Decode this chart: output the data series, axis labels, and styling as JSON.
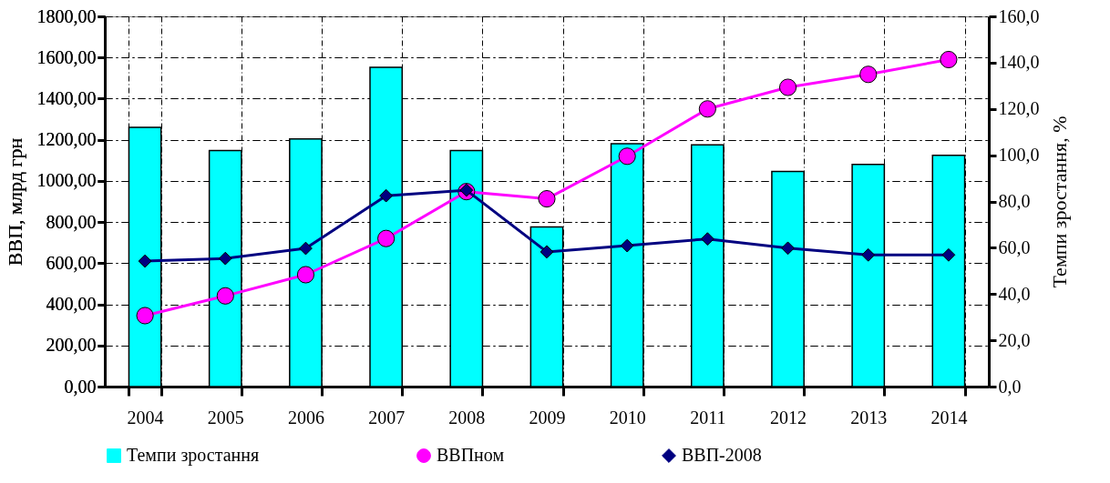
{
  "chart_data": {
    "type": "line",
    "categories": [
      "2004",
      "2005",
      "2006",
      "2007",
      "2008",
      "2009",
      "2010",
      "2011",
      "2012",
      "2013",
      "2014"
    ],
    "ylabel": "ВВП,  млрд грн",
    "y2label": "Темпи зростання,  %",
    "ylim": [
      0,
      1800
    ],
    "yticks": [
      {
        "value": 0,
        "label": "0,00"
      },
      {
        "value": 200,
        "label": "200,00"
      },
      {
        "value": 400,
        "label": "400,00"
      },
      {
        "value": 600,
        "label": "600,00"
      },
      {
        "value": 800,
        "label": "800,00"
      },
      {
        "value": 1000,
        "label": "1000,00"
      },
      {
        "value": 1200,
        "label": "1200,00"
      },
      {
        "value": 1400,
        "label": "1400,00"
      },
      {
        "value": 1600,
        "label": "1600,00"
      },
      {
        "value": 1800,
        "label": "1800,00"
      }
    ],
    "y2lim": [
      0,
      160
    ],
    "y2ticks": [
      {
        "value": 0,
        "label": "0,0"
      },
      {
        "value": 20,
        "label": "20,0"
      },
      {
        "value": 40,
        "label": "40,0"
      },
      {
        "value": 60,
        "label": "60,0"
      },
      {
        "value": 80,
        "label": "80,0"
      },
      {
        "value": 100,
        "label": "100,0"
      },
      {
        "value": 120,
        "label": "120,0"
      },
      {
        "value": 140,
        "label": "140,0"
      },
      {
        "value": 160,
        "label": "160,0"
      }
    ],
    "series": [
      {
        "name": "Темпи зростання",
        "type": "bar",
        "axis": "y2",
        "color": "#00ffff",
        "values": [
          112,
          102,
          107,
          138,
          102,
          69,
          105,
          104.5,
          93,
          96,
          100
        ]
      },
      {
        "name": "ВВПном",
        "marker": "circle",
        "color": "#ff00ff",
        "values": [
          345,
          441,
          544,
          720,
          948,
          913,
          1120,
          1350,
          1455,
          1518,
          1590
        ]
      },
      {
        "name": "ВВП-2008",
        "marker": "diamond",
        "color": "#000080",
        "values": [
          610,
          623,
          672,
          928,
          955,
          655,
          685,
          718,
          673,
          640,
          640
        ]
      }
    ],
    "grid": true,
    "legend": "bottom",
    "line_style": "solid"
  }
}
